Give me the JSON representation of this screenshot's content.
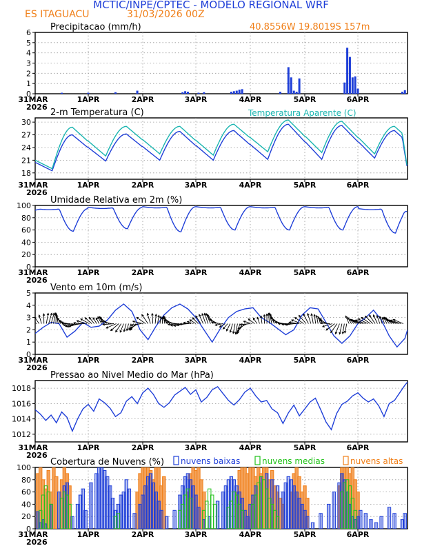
{
  "header": {
    "title": "MCTIC/INPE/CPTEC - MODELO REGIONAL WRF",
    "station": "ES ITAGUACU",
    "run": "31/03/2026 00Z",
    "coords": "40.8556W 19.8019S 157m"
  },
  "colors": {
    "blue": "#1f3fd8",
    "orange": "#f07f18",
    "cyan": "#1ab5b0",
    "green": "#22c21a",
    "black": "#000000"
  },
  "x_axis": {
    "labels": [
      "31MAR",
      "1APR",
      "2APR",
      "3APR",
      "4APR",
      "5APR",
      "6APR"
    ],
    "year": "2026",
    "days": [
      0,
      1,
      2,
      3,
      4,
      5,
      6
    ],
    "xlim": [
      0,
      6.95
    ]
  },
  "chart_data": [
    {
      "type": "bar",
      "id": "precip",
      "title": "Precipitacao (mm/h)",
      "coords_label": "40.8556W 19.8019S 157m",
      "ylim": [
        0,
        6
      ],
      "yticks": [
        "0",
        "1",
        "2",
        "3",
        "4",
        "5",
        "6"
      ],
      "ytick_values": [
        0,
        1,
        2,
        3,
        4,
        5,
        6
      ],
      "series": [
        {
          "name": "Precipitacao",
          "x": [
            0.5,
            1.0,
            1.5,
            1.9,
            2.75,
            2.8,
            2.85,
            3.05,
            3.15,
            3.65,
            3.7,
            3.75,
            3.8,
            3.85,
            4.55,
            4.7,
            4.75,
            4.8,
            4.85,
            4.9,
            5.75,
            5.8,
            5.85,
            5.9,
            5.95,
            6.0,
            6.85,
            6.9
          ],
          "values": [
            0.1,
            0.1,
            0.15,
            0.3,
            0.15,
            0.25,
            0.2,
            0.1,
            0.15,
            0.2,
            0.25,
            0.3,
            0.4,
            0.45,
            0.2,
            2.6,
            1.6,
            0.3,
            0.2,
            1.5,
            1.1,
            4.5,
            3.6,
            1.6,
            1.7,
            0.5,
            0.2,
            0.35
          ]
        }
      ]
    },
    {
      "type": "line",
      "id": "temp",
      "title": "2-m Temperatura (C)",
      "legend": "Temperatura Aparente (C)",
      "ylim": [
        16.5,
        31
      ],
      "yticks": [
        "18",
        "21",
        "24",
        "27",
        "30"
      ],
      "ytick_values": [
        18,
        21,
        24,
        27,
        30
      ],
      "series": [
        {
          "name": "2-m Temperatura (C)",
          "tmin": [
            18.5,
            20.8,
            21.0,
            21.0,
            21.2,
            21.2,
            21.5
          ],
          "tmax": [
            27.0,
            27.2,
            27.8,
            28.0,
            29.5,
            29.2,
            28.0
          ],
          "t_start": 20.5,
          "t_end": 19.0
        },
        {
          "name": "Temperatura Aparente (C)",
          "tmin": [
            19.0,
            22.0,
            22.5,
            22.2,
            23.0,
            22.8,
            22.5
          ],
          "tmax": [
            28.8,
            29.0,
            29.0,
            29.5,
            30.5,
            30.2,
            29.0
          ],
          "t_start": 21.0,
          "t_end": 19.2
        }
      ]
    },
    {
      "type": "line",
      "id": "rh",
      "title": "Umidade Relativa em 2m (%)",
      "ylim": [
        0,
        100
      ],
      "yticks": [
        "0",
        "20",
        "40",
        "60",
        "80",
        "100"
      ],
      "ytick_values": [
        0,
        20,
        40,
        60,
        80,
        100
      ],
      "series": [
        {
          "name": "Umidade Relativa",
          "min": [
            58,
            62,
            57,
            60,
            60,
            60,
            55
          ],
          "max": [
            95,
            97,
            98,
            98,
            98,
            98,
            95
          ],
          "start": 92,
          "end": 90
        }
      ]
    },
    {
      "type": "line",
      "id": "wind",
      "title": "Vento em 10m (m/s)",
      "ylim": [
        0,
        5
      ],
      "yticks": [
        "0",
        "1",
        "2",
        "3",
        "4",
        "5"
      ],
      "ytick_values": [
        0,
        1,
        2,
        3,
        4,
        5
      ],
      "series": [
        {
          "name": "Vento em 10m",
          "x": [
            0,
            0.15,
            0.3,
            0.45,
            0.6,
            0.75,
            0.9,
            1.05,
            1.2,
            1.35,
            1.5,
            1.65,
            1.8,
            1.95,
            2.1,
            2.25,
            2.4,
            2.55,
            2.7,
            2.85,
            3.0,
            3.15,
            3.3,
            3.45,
            3.6,
            3.75,
            3.9,
            4.05,
            4.2,
            4.35,
            4.5,
            4.65,
            4.8,
            4.95,
            5.1,
            5.25,
            5.4,
            5.55,
            5.7,
            5.85,
            6.0,
            6.15,
            6.3,
            6.45,
            6.6,
            6.75,
            6.9,
            6.95
          ],
          "values": [
            1.7,
            2.2,
            2.6,
            2.5,
            1.4,
            1.9,
            2.6,
            2.2,
            2.3,
            2.8,
            3.6,
            4.1,
            3.5,
            2.0,
            1.2,
            2.3,
            3.2,
            3.8,
            4.1,
            3.7,
            3.0,
            2.0,
            1.0,
            2.1,
            3.0,
            3.5,
            3.7,
            3.8,
            3.0,
            2.6,
            2.1,
            1.6,
            2.0,
            3.2,
            3.8,
            3.7,
            2.6,
            1.5,
            0.9,
            1.5,
            2.5,
            3.0,
            3.6,
            2.8,
            1.5,
            0.6,
            1.3,
            2.0
          ]
        }
      ],
      "arrows": "wind direction vectors"
    },
    {
      "type": "line",
      "id": "pres",
      "title": "Pressao ao Nivel Medio do Mar (hPa)",
      "ylim": [
        1011,
        1019
      ],
      "yticks": [
        "1012",
        "1014",
        "1016",
        "1018"
      ],
      "ytick_values": [
        1012,
        1014,
        1016,
        1018
      ],
      "series": [
        {
          "name": "PNMM",
          "x": [
            0,
            0.1,
            0.2,
            0.3,
            0.4,
            0.5,
            0.6,
            0.7,
            0.8,
            0.9,
            1.0,
            1.1,
            1.2,
            1.3,
            1.4,
            1.5,
            1.6,
            1.7,
            1.8,
            1.9,
            2.0,
            2.1,
            2.2,
            2.3,
            2.4,
            2.5,
            2.6,
            2.7,
            2.8,
            2.9,
            3.0,
            3.1,
            3.2,
            3.3,
            3.4,
            3.5,
            3.6,
            3.7,
            3.8,
            3.9,
            4.0,
            4.1,
            4.2,
            4.3,
            4.4,
            4.5,
            4.6,
            4.7,
            4.8,
            4.9,
            5.0,
            5.1,
            5.2,
            5.3,
            5.4,
            5.5,
            5.6,
            5.7,
            5.8,
            5.9,
            6.0,
            6.1,
            6.2,
            6.3,
            6.4,
            6.5,
            6.6,
            6.7,
            6.8,
            6.9,
            6.95
          ],
          "values": [
            1015.2,
            1014.6,
            1013.8,
            1014.5,
            1013.5,
            1014.9,
            1014.2,
            1012.4,
            1014.0,
            1015.3,
            1015.9,
            1015.0,
            1016.6,
            1016.1,
            1015.4,
            1014.3,
            1014.8,
            1016.3,
            1016.9,
            1016.0,
            1017.4,
            1018.0,
            1017.2,
            1016.0,
            1015.5,
            1016.1,
            1017.1,
            1017.6,
            1018.1,
            1017.2,
            1017.8,
            1016.2,
            1016.8,
            1017.8,
            1018.2,
            1017.3,
            1016.4,
            1015.8,
            1016.5,
            1017.5,
            1018.0,
            1017.0,
            1016.2,
            1016.4,
            1015.3,
            1014.8,
            1013.4,
            1014.8,
            1015.8,
            1014.4,
            1015.3,
            1016.2,
            1016.7,
            1015.2,
            1013.6,
            1012.6,
            1014.7,
            1015.9,
            1016.3,
            1017.0,
            1017.4,
            1016.7,
            1016.2,
            1016.6,
            1015.7,
            1014.3,
            1016.0,
            1016.4,
            1017.4,
            1018.4,
            1018.8
          ]
        }
      ]
    },
    {
      "type": "bar",
      "id": "clouds",
      "title": "Cobertura de Nuvens (%)",
      "ylim": [
        0,
        100
      ],
      "yticks": [
        "0",
        "20",
        "40",
        "60",
        "80",
        "100"
      ],
      "ytick_values": [
        0,
        20,
        40,
        60,
        80,
        100
      ],
      "legend": [
        "nuvens baixas",
        "nuvens medias",
        "nuvens altas"
      ],
      "series": [
        {
          "name": "nuvens baixas",
          "x": [
            0.05,
            0.1,
            0.15,
            0.2,
            0.3,
            0.45,
            0.55,
            0.6,
            0.7,
            0.8,
            0.85,
            0.9,
            0.95,
            1.05,
            1.15,
            1.2,
            1.25,
            1.3,
            1.35,
            1.4,
            1.45,
            1.5,
            1.55,
            1.6,
            1.65,
            1.7,
            1.75,
            1.85,
            1.95,
            2.0,
            2.05,
            2.1,
            2.15,
            2.2,
            2.25,
            2.3,
            2.35,
            2.45,
            2.6,
            2.7,
            2.75,
            2.8,
            2.85,
            2.9,
            2.95,
            3.0,
            3.05,
            3.15,
            3.25,
            3.4,
            3.5,
            3.55,
            3.6,
            3.65,
            3.7,
            3.75,
            3.8,
            3.85,
            3.9,
            3.95,
            4.0,
            4.05,
            4.1,
            4.2,
            4.3,
            4.4,
            4.5,
            4.6,
            4.65,
            4.7,
            4.75,
            4.8,
            4.85,
            4.9,
            4.95,
            5.0,
            5.05,
            5.15,
            5.3,
            5.45,
            5.55,
            5.65,
            5.7,
            5.75,
            5.8,
            5.85,
            5.9,
            5.95,
            6.0,
            6.05,
            6.15,
            6.25,
            6.35,
            6.45,
            6.6,
            6.7,
            6.85,
            6.9
          ],
          "values": [
            28,
            10,
            15,
            8,
            40,
            60,
            70,
            75,
            20,
            40,
            55,
            65,
            30,
            75,
            90,
            100,
            100,
            95,
            85,
            70,
            50,
            30,
            40,
            55,
            60,
            80,
            65,
            25,
            40,
            55,
            70,
            85,
            90,
            75,
            60,
            45,
            30,
            20,
            30,
            55,
            70,
            85,
            90,
            80,
            70,
            55,
            35,
            15,
            20,
            45,
            60,
            70,
            80,
            85,
            80,
            70,
            60,
            50,
            30,
            20,
            40,
            55,
            70,
            85,
            90,
            80,
            70,
            60,
            75,
            85,
            80,
            70,
            60,
            50,
            40,
            30,
            20,
            10,
            25,
            40,
            60,
            75,
            90,
            80,
            60,
            40,
            20,
            15,
            20,
            30,
            25,
            15,
            10,
            20,
            35,
            25,
            15,
            25
          ]
        },
        {
          "name": "nuvens medias",
          "x": [
            0.1,
            0.15,
            0.2,
            0.25,
            0.3,
            0.5,
            0.55,
            0.6,
            0.65,
            1.5,
            1.55,
            2.7,
            2.75,
            2.8,
            2.85,
            2.9,
            3.15,
            3.2,
            3.25,
            3.3,
            3.35,
            3.6,
            3.65,
            3.7,
            3.75,
            3.8,
            3.85,
            4.05,
            4.1,
            4.15,
            4.2,
            4.25,
            4.3,
            4.35,
            4.4,
            4.45,
            4.5,
            5.7,
            5.75,
            5.8,
            5.85,
            5.9,
            5.95
          ],
          "values": [
            30,
            55,
            70,
            60,
            40,
            50,
            60,
            55,
            40,
            20,
            25,
            30,
            40,
            55,
            65,
            50,
            30,
            45,
            65,
            55,
            40,
            35,
            45,
            60,
            55,
            40,
            30,
            40,
            55,
            75,
            85,
            80,
            65,
            50,
            40,
            30,
            20,
            60,
            75,
            80,
            70,
            50,
            30
          ]
        },
        {
          "name": "nuvens altas",
          "x": [
            0.05,
            0.1,
            0.15,
            0.2,
            0.25,
            0.3,
            0.35,
            0.4,
            0.5,
            0.55,
            0.6,
            0.65,
            1.9,
            1.95,
            2.0,
            2.05,
            2.1,
            2.15,
            2.2,
            2.25,
            2.3,
            2.35,
            2.4,
            2.85,
            2.9,
            2.95,
            3.0,
            3.05,
            3.1,
            3.15,
            3.75,
            3.8,
            3.85,
            3.9,
            3.95,
            4.0,
            4.05,
            4.1,
            4.15,
            4.2,
            4.25,
            4.3,
            4.35,
            4.4,
            4.45,
            4.5,
            4.55,
            4.6,
            4.75,
            4.8,
            4.85,
            4.9,
            4.95,
            5.0,
            5.05,
            5.65,
            5.7,
            5.75,
            5.8,
            5.85,
            5.9,
            5.95,
            6.0
          ],
          "values": [
            90,
            100,
            80,
            65,
            95,
            60,
            100,
            85,
            80,
            100,
            90,
            70,
            60,
            90,
            100,
            100,
            100,
            95,
            80,
            100,
            100,
            70,
            85,
            60,
            90,
            100,
            95,
            100,
            80,
            60,
            60,
            95,
            100,
            100,
            90,
            100,
            100,
            85,
            100,
            90,
            100,
            100,
            80,
            95,
            70,
            60,
            50,
            40,
            60,
            90,
            100,
            85,
            60,
            70,
            50,
            70,
            100,
            100,
            100,
            90,
            100,
            80,
            60
          ]
        }
      ]
    }
  ]
}
